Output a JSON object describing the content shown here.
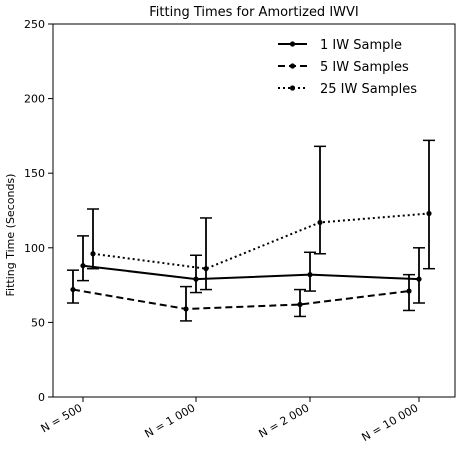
{
  "chart_data": {
    "type": "line",
    "title": "Fitting Times for Amortized IWVI",
    "xlabel": "",
    "ylabel": "Fitting Time (Seconds)",
    "ylim": [
      0,
      250
    ],
    "yticks": [
      0,
      50,
      100,
      150,
      200,
      250
    ],
    "categories": [
      "N = 500",
      "N = 1 000",
      "N = 2 000",
      "N = 10 000"
    ],
    "grid": false,
    "legend_position": "top-right",
    "series": [
      {
        "name": "1 IW Sample",
        "style": "solid",
        "values": [
          88,
          79,
          82,
          79
        ],
        "err_low": [
          78,
          70,
          71,
          63
        ],
        "err_high": [
          108,
          95,
          97,
          100
        ]
      },
      {
        "name": "5 IW Samples",
        "style": "dashed",
        "values": [
          72,
          59,
          62,
          71
        ],
        "err_low": [
          63,
          51,
          54,
          58
        ],
        "err_high": [
          85,
          74,
          72,
          82
        ]
      },
      {
        "name": "25 IW Samples",
        "style": "dotted",
        "values": [
          96,
          86,
          117,
          123
        ],
        "err_low": [
          86,
          72,
          96,
          86
        ],
        "err_high": [
          126,
          120,
          168,
          172
        ]
      }
    ]
  }
}
